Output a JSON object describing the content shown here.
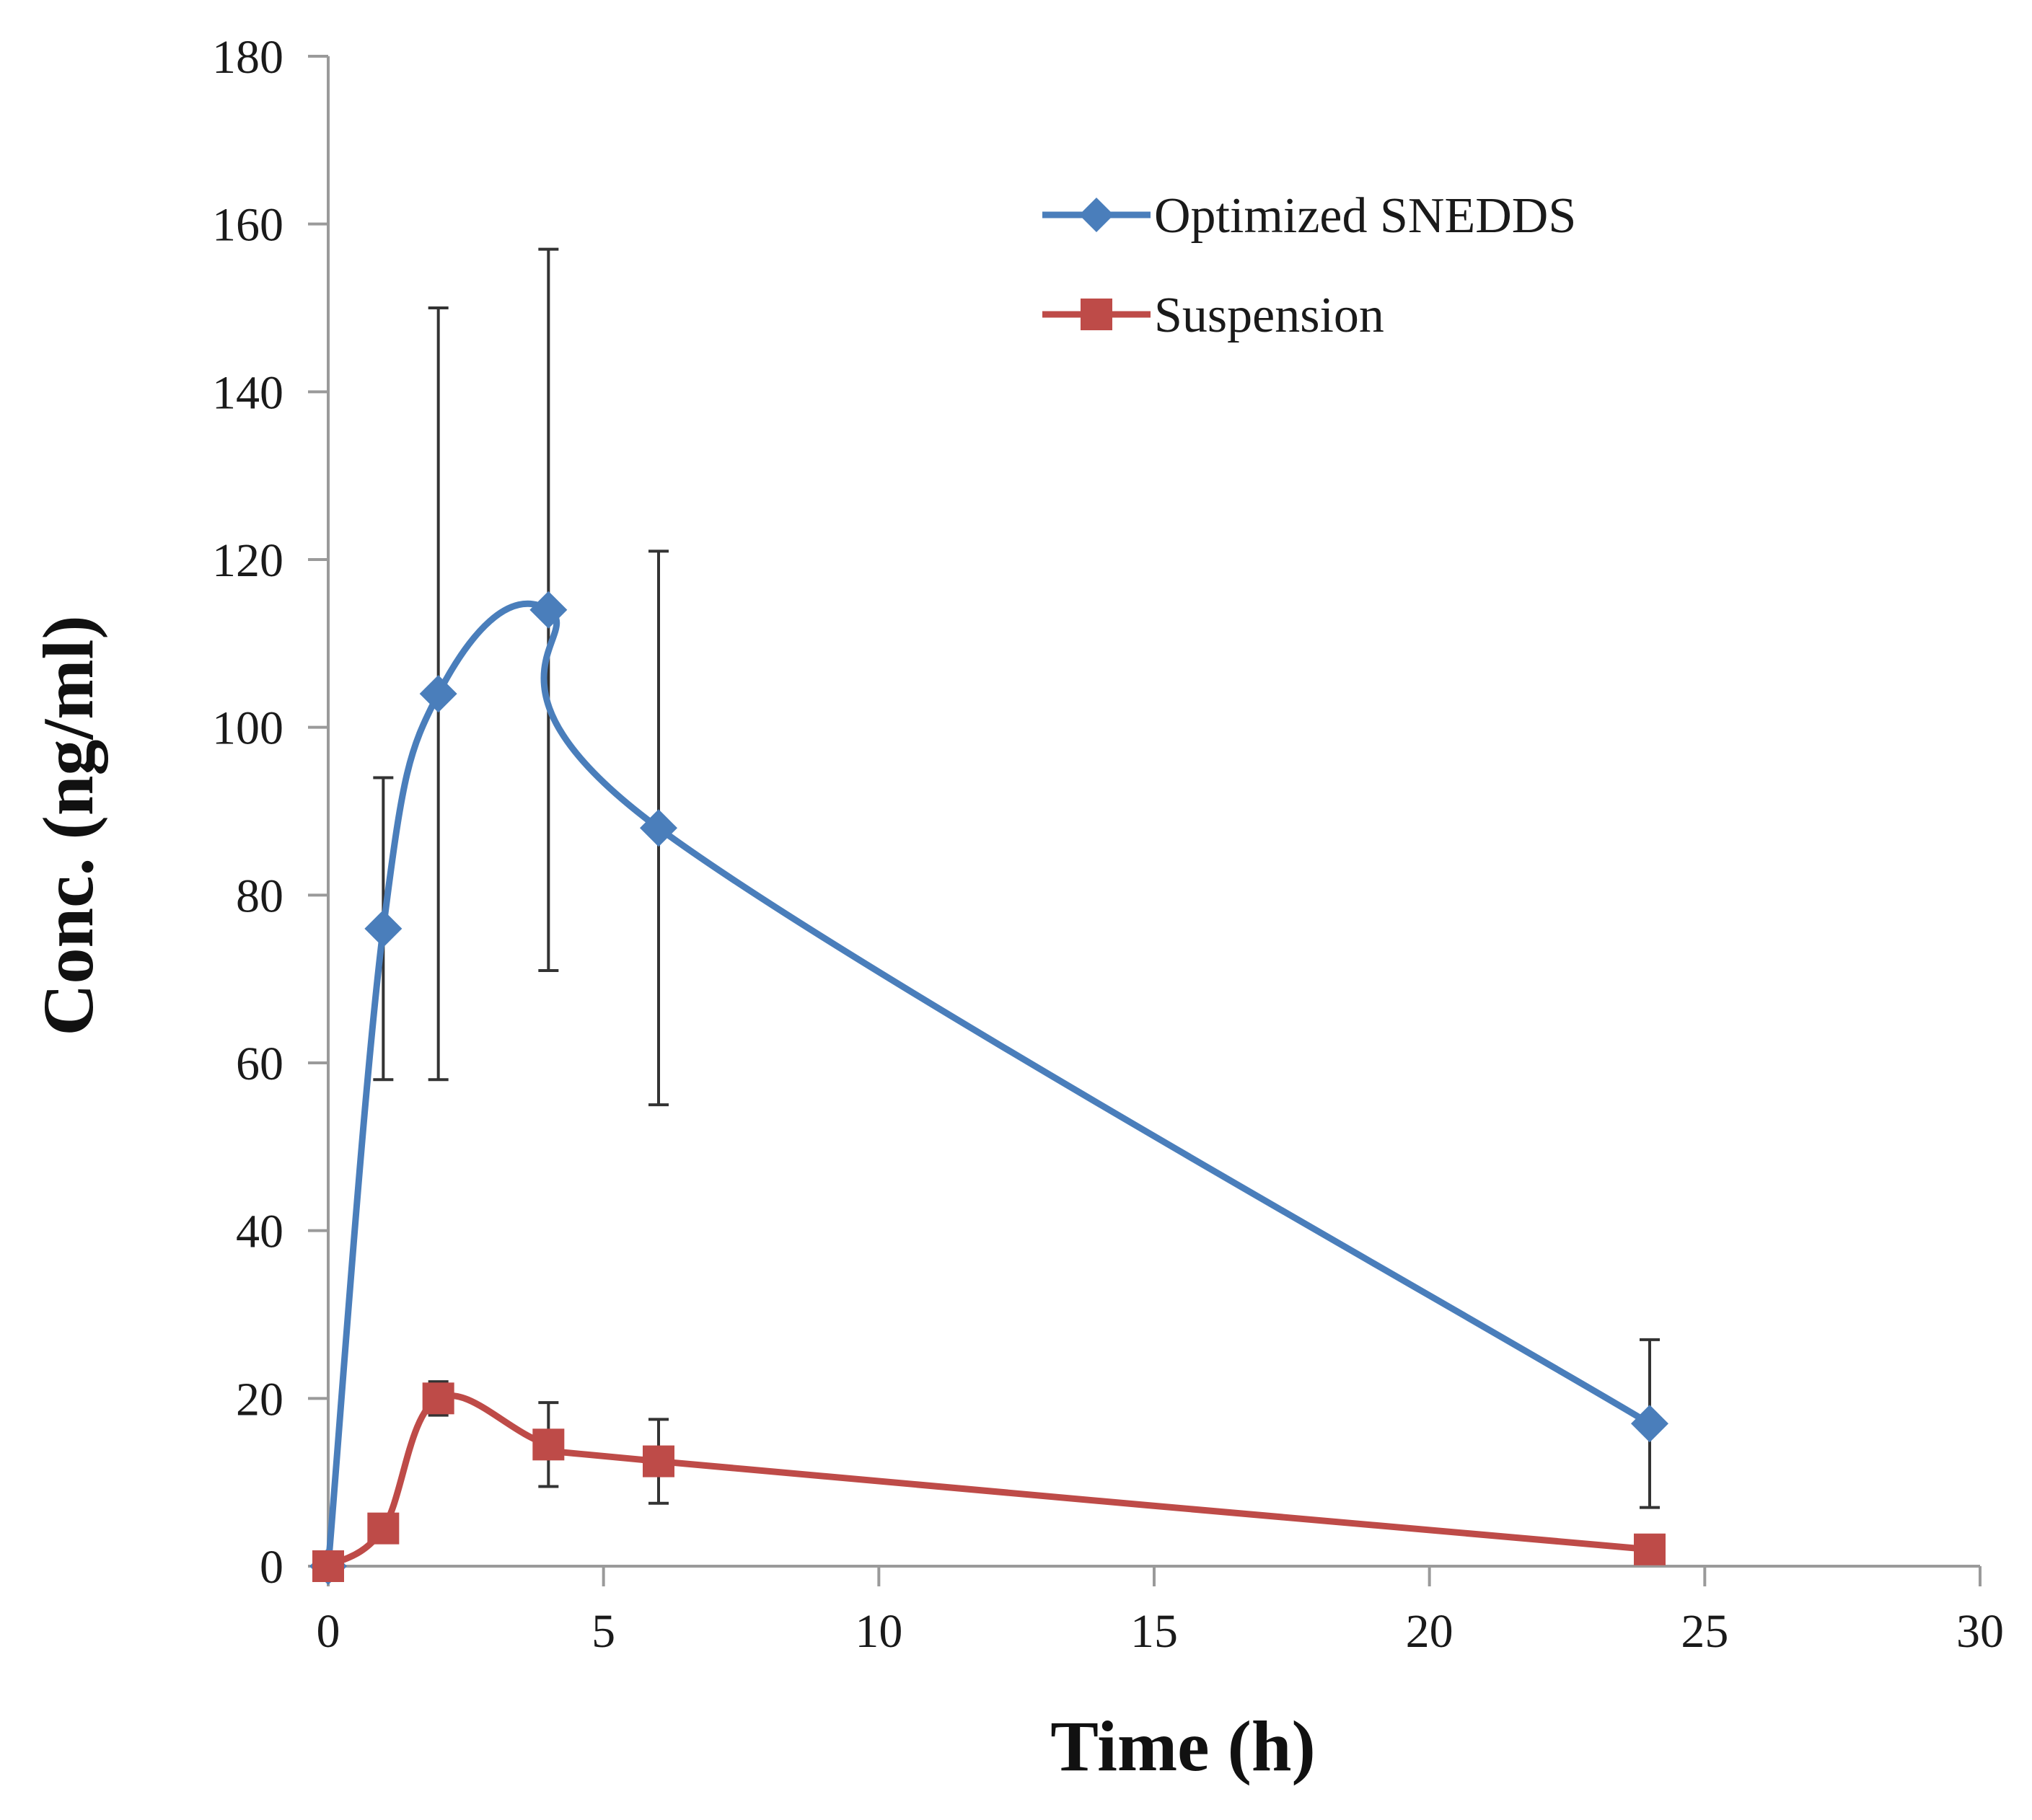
{
  "chart_data": {
    "type": "line",
    "title": "",
    "xlabel": "Time (h)",
    "ylabel": "Conc. (ng/ml)",
    "xlim": [
      0,
      30
    ],
    "ylim": [
      0,
      180
    ],
    "xticks": [
      0,
      5,
      10,
      15,
      20,
      25,
      30
    ],
    "yticks": [
      0,
      20,
      40,
      60,
      80,
      100,
      120,
      140,
      160,
      180
    ],
    "grid": false,
    "legend_position": "top-right",
    "series": [
      {
        "name": "Optimized SNEDDS",
        "marker": "diamond",
        "color": "#4a7ebb",
        "smooth": true,
        "x": [
          0,
          1,
          2,
          4,
          6,
          24
        ],
        "y": [
          0,
          76,
          104,
          114,
          88,
          17
        ],
        "error": [
          0,
          18,
          46,
          43,
          33,
          10
        ]
      },
      {
        "name": "Suspension",
        "marker": "square",
        "color": "#be4b48",
        "smooth": true,
        "x": [
          0,
          1,
          2,
          4,
          6,
          24
        ],
        "y": [
          0,
          4.5,
          20,
          14.5,
          12.5,
          2
        ],
        "error": [
          0,
          0,
          2,
          5,
          5,
          0
        ]
      }
    ]
  },
  "colors": {
    "axis": "#9a9a9a",
    "error_bar": "#333333",
    "ylabel": "#5a3a0a"
  }
}
